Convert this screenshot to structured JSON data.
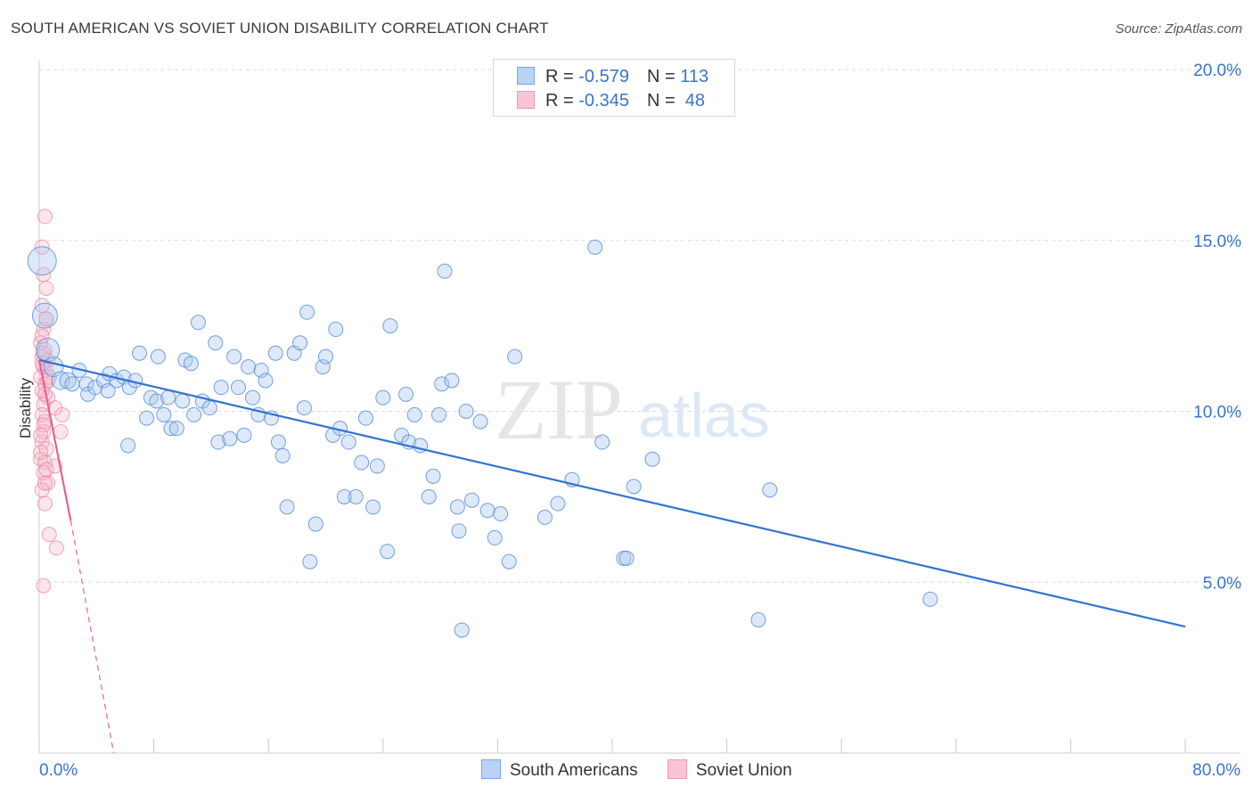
{
  "title": "SOUTH AMERICAN VS SOVIET UNION DISABILITY CORRELATION CHART",
  "source": "Source: ZipAtlas.com",
  "watermark": {
    "zip": "ZIP",
    "atlas": "atlas"
  },
  "legend": {
    "rows": [
      {
        "r_label": "R = ",
        "r_value": "-0.579",
        "n_label": "N = ",
        "n_value": "113"
      },
      {
        "r_label": "R = ",
        "r_value": "-0.345",
        "n_label": "N = ",
        "n_value": " 48"
      }
    ]
  },
  "colors": {
    "blue_fill": "#a9c8f0",
    "blue_stroke": "#5b8fd8",
    "blue_line": "#2f74d0",
    "pink_fill": "#f7b6c8",
    "pink_stroke": "#ec7fa0",
    "pink_line": "#e8628c",
    "grid": "#dcdcdc",
    "axis_label": "#3a74c9"
  },
  "chart_data": {
    "type": "scatter",
    "title": "SOUTH AMERICAN VS SOVIET UNION DISABILITY CORRELATION CHART",
    "ylabel": "Disability",
    "xlabel": "",
    "xlim": [
      0,
      80
    ],
    "ylim": [
      0,
      20
    ],
    "y_ticks": [
      "5.0%",
      "10.0%",
      "15.0%",
      "20.0%"
    ],
    "y_tick_values": [
      5,
      10,
      15,
      20
    ],
    "x_tick_labels": {
      "left": "0.0%",
      "right": "80.0%"
    },
    "grid": "horizontal dashed",
    "legend_position": "top-center",
    "series": [
      {
        "name": "South Americans",
        "color": "#a9c8f0",
        "trend": {
          "x": [
            0,
            80
          ],
          "y": [
            11.5,
            3.7
          ]
        },
        "points": [
          {
            "x": 0.2,
            "y": 14.4,
            "s": 16
          },
          {
            "x": 0.4,
            "y": 12.8,
            "s": 14
          },
          {
            "x": 0.6,
            "y": 11.8,
            "s": 13
          },
          {
            "x": 1.0,
            "y": 11.3,
            "s": 11
          },
          {
            "x": 1.5,
            "y": 10.9,
            "s": 10
          },
          {
            "x": 2.0,
            "y": 10.9,
            "s": 9
          },
          {
            "x": 2.3,
            "y": 10.8,
            "s": 8
          },
          {
            "x": 2.8,
            "y": 11.2,
            "s": 8
          },
          {
            "x": 3.3,
            "y": 10.8,
            "s": 8
          },
          {
            "x": 3.4,
            "y": 10.5,
            "s": 8
          },
          {
            "x": 3.9,
            "y": 10.7,
            "s": 8
          },
          {
            "x": 4.5,
            "y": 10.9,
            "s": 8
          },
          {
            "x": 4.8,
            "y": 10.6,
            "s": 8
          },
          {
            "x": 4.9,
            "y": 11.1,
            "s": 8
          },
          {
            "x": 5.4,
            "y": 10.9,
            "s": 8
          },
          {
            "x": 5.9,
            "y": 11.0,
            "s": 8
          },
          {
            "x": 6.3,
            "y": 10.7,
            "s": 8
          },
          {
            "x": 6.7,
            "y": 10.9,
            "s": 8
          },
          {
            "x": 6.2,
            "y": 9.0,
            "s": 8
          },
          {
            "x": 7.0,
            "y": 11.7,
            "s": 8
          },
          {
            "x": 7.5,
            "y": 9.8,
            "s": 8
          },
          {
            "x": 7.8,
            "y": 10.4,
            "s": 8
          },
          {
            "x": 8.2,
            "y": 10.3,
            "s": 8
          },
          {
            "x": 8.3,
            "y": 11.6,
            "s": 8
          },
          {
            "x": 8.7,
            "y": 9.9,
            "s": 8
          },
          {
            "x": 9.2,
            "y": 9.5,
            "s": 8
          },
          {
            "x": 9.6,
            "y": 9.5,
            "s": 8
          },
          {
            "x": 9.0,
            "y": 10.4,
            "s": 8
          },
          {
            "x": 10.0,
            "y": 10.3,
            "s": 8
          },
          {
            "x": 10.2,
            "y": 11.5,
            "s": 8
          },
          {
            "x": 10.6,
            "y": 11.4,
            "s": 8
          },
          {
            "x": 10.8,
            "y": 9.9,
            "s": 8
          },
          {
            "x": 11.1,
            "y": 12.6,
            "s": 8
          },
          {
            "x": 11.4,
            "y": 10.3,
            "s": 8
          },
          {
            "x": 11.9,
            "y": 10.1,
            "s": 8
          },
          {
            "x": 12.3,
            "y": 12.0,
            "s": 8
          },
          {
            "x": 12.5,
            "y": 9.1,
            "s": 8
          },
          {
            "x": 12.7,
            "y": 10.7,
            "s": 8
          },
          {
            "x": 13.3,
            "y": 9.2,
            "s": 8
          },
          {
            "x": 13.6,
            "y": 11.6,
            "s": 8
          },
          {
            "x": 13.9,
            "y": 10.7,
            "s": 8
          },
          {
            "x": 14.3,
            "y": 9.3,
            "s": 8
          },
          {
            "x": 14.6,
            "y": 11.3,
            "s": 8
          },
          {
            "x": 14.9,
            "y": 10.4,
            "s": 8
          },
          {
            "x": 15.3,
            "y": 9.9,
            "s": 8
          },
          {
            "x": 15.5,
            "y": 11.2,
            "s": 8
          },
          {
            "x": 15.8,
            "y": 10.9,
            "s": 8
          },
          {
            "x": 16.2,
            "y": 9.8,
            "s": 8
          },
          {
            "x": 16.5,
            "y": 11.7,
            "s": 8
          },
          {
            "x": 16.7,
            "y": 9.1,
            "s": 8
          },
          {
            "x": 17.0,
            "y": 8.7,
            "s": 8
          },
          {
            "x": 17.3,
            "y": 7.2,
            "s": 8
          },
          {
            "x": 17.8,
            "y": 11.7,
            "s": 8
          },
          {
            "x": 18.2,
            "y": 12.0,
            "s": 8
          },
          {
            "x": 18.5,
            "y": 10.1,
            "s": 8
          },
          {
            "x": 18.7,
            "y": 12.9,
            "s": 8
          },
          {
            "x": 18.9,
            "y": 5.6,
            "s": 8
          },
          {
            "x": 19.3,
            "y": 6.7,
            "s": 8
          },
          {
            "x": 19.8,
            "y": 11.3,
            "s": 8
          },
          {
            "x": 20.0,
            "y": 11.6,
            "s": 8
          },
          {
            "x": 20.5,
            "y": 9.3,
            "s": 8
          },
          {
            "x": 20.7,
            "y": 12.4,
            "s": 8
          },
          {
            "x": 21.0,
            "y": 9.5,
            "s": 8
          },
          {
            "x": 21.3,
            "y": 7.5,
            "s": 8
          },
          {
            "x": 21.6,
            "y": 9.1,
            "s": 8
          },
          {
            "x": 22.1,
            "y": 7.5,
            "s": 8
          },
          {
            "x": 22.5,
            "y": 8.5,
            "s": 8
          },
          {
            "x": 22.8,
            "y": 9.8,
            "s": 8
          },
          {
            "x": 23.3,
            "y": 7.2,
            "s": 8
          },
          {
            "x": 23.6,
            "y": 8.4,
            "s": 8
          },
          {
            "x": 24.0,
            "y": 10.4,
            "s": 8
          },
          {
            "x": 24.3,
            "y": 5.9,
            "s": 8
          },
          {
            "x": 24.5,
            "y": 12.5,
            "s": 8
          },
          {
            "x": 25.3,
            "y": 9.3,
            "s": 8
          },
          {
            "x": 25.6,
            "y": 10.5,
            "s": 8
          },
          {
            "x": 25.8,
            "y": 9.1,
            "s": 8
          },
          {
            "x": 26.2,
            "y": 9.9,
            "s": 8
          },
          {
            "x": 26.6,
            "y": 9.0,
            "s": 8
          },
          {
            "x": 27.2,
            "y": 7.5,
            "s": 8
          },
          {
            "x": 27.5,
            "y": 8.1,
            "s": 8
          },
          {
            "x": 27.9,
            "y": 9.9,
            "s": 8
          },
          {
            "x": 28.1,
            "y": 10.8,
            "s": 8
          },
          {
            "x": 28.3,
            "y": 14.1,
            "s": 8
          },
          {
            "x": 28.8,
            "y": 10.9,
            "s": 8
          },
          {
            "x": 29.2,
            "y": 7.2,
            "s": 8
          },
          {
            "x": 29.3,
            "y": 6.5,
            "s": 8
          },
          {
            "x": 29.8,
            "y": 10.0,
            "s": 8
          },
          {
            "x": 30.2,
            "y": 7.4,
            "s": 8
          },
          {
            "x": 30.8,
            "y": 9.7,
            "s": 8
          },
          {
            "x": 29.5,
            "y": 3.6,
            "s": 8
          },
          {
            "x": 31.3,
            "y": 7.1,
            "s": 8
          },
          {
            "x": 31.8,
            "y": 6.3,
            "s": 8
          },
          {
            "x": 32.2,
            "y": 7.0,
            "s": 8
          },
          {
            "x": 32.8,
            "y": 5.6,
            "s": 8
          },
          {
            "x": 33.2,
            "y": 11.6,
            "s": 8
          },
          {
            "x": 35.3,
            "y": 6.9,
            "s": 8
          },
          {
            "x": 36.2,
            "y": 7.3,
            "s": 8
          },
          {
            "x": 37.2,
            "y": 8.0,
            "s": 8
          },
          {
            "x": 38.8,
            "y": 14.8,
            "s": 8
          },
          {
            "x": 39.3,
            "y": 9.1,
            "s": 8
          },
          {
            "x": 40.8,
            "y": 5.7,
            "s": 8
          },
          {
            "x": 41.0,
            "y": 5.7,
            "s": 8
          },
          {
            "x": 41.5,
            "y": 7.8,
            "s": 8
          },
          {
            "x": 42.8,
            "y": 8.6,
            "s": 8
          },
          {
            "x": 50.2,
            "y": 3.9,
            "s": 8
          },
          {
            "x": 51.0,
            "y": 7.7,
            "s": 8
          },
          {
            "x": 62.2,
            "y": 4.5,
            "s": 8
          }
        ]
      },
      {
        "name": "Soviet Union",
        "color": "#f7b6c8",
        "trend": {
          "x": [
            0,
            2.2
          ],
          "y": [
            11.5,
            6.8
          ],
          "dashed_to": {
            "x": 5.2,
            "y": 0
          }
        },
        "points": [
          {
            "x": 0.4,
            "y": 15.7,
            "s": 8
          },
          {
            "x": 0.2,
            "y": 14.8,
            "s": 8
          },
          {
            "x": 0.3,
            "y": 14.0,
            "s": 8
          },
          {
            "x": 0.5,
            "y": 13.6,
            "s": 8
          },
          {
            "x": 0.2,
            "y": 13.1,
            "s": 8
          },
          {
            "x": 0.5,
            "y": 12.7,
            "s": 8
          },
          {
            "x": 0.3,
            "y": 12.4,
            "s": 8
          },
          {
            "x": 0.1,
            "y": 12.0,
            "s": 8
          },
          {
            "x": 0.4,
            "y": 11.8,
            "s": 8
          },
          {
            "x": 0.2,
            "y": 11.6,
            "s": 8
          },
          {
            "x": 0.6,
            "y": 11.5,
            "s": 8
          },
          {
            "x": 0.3,
            "y": 11.3,
            "s": 8
          },
          {
            "x": 0.5,
            "y": 11.2,
            "s": 8
          },
          {
            "x": 0.1,
            "y": 11.0,
            "s": 8
          },
          {
            "x": 0.4,
            "y": 10.8,
            "s": 8
          },
          {
            "x": 0.2,
            "y": 10.6,
            "s": 8
          },
          {
            "x": 0.6,
            "y": 10.4,
            "s": 8
          },
          {
            "x": 0.3,
            "y": 10.2,
            "s": 8
          },
          {
            "x": 1.1,
            "y": 10.1,
            "s": 8
          },
          {
            "x": 0.2,
            "y": 9.9,
            "s": 8
          },
          {
            "x": 1.6,
            "y": 9.9,
            "s": 8
          },
          {
            "x": 0.4,
            "y": 9.7,
            "s": 8
          },
          {
            "x": 0.3,
            "y": 9.4,
            "s": 8
          },
          {
            "x": 1.5,
            "y": 9.4,
            "s": 8
          },
          {
            "x": 0.2,
            "y": 9.1,
            "s": 8
          },
          {
            "x": 0.5,
            "y": 8.9,
            "s": 8
          },
          {
            "x": 0.1,
            "y": 8.6,
            "s": 8
          },
          {
            "x": 0.4,
            "y": 8.5,
            "s": 8
          },
          {
            "x": 1.1,
            "y": 8.4,
            "s": 8
          },
          {
            "x": 0.3,
            "y": 8.2,
            "s": 8
          },
          {
            "x": 0.6,
            "y": 7.9,
            "s": 8
          },
          {
            "x": 0.2,
            "y": 7.7,
            "s": 8
          },
          {
            "x": 0.4,
            "y": 7.3,
            "s": 8
          },
          {
            "x": 0.7,
            "y": 6.4,
            "s": 8
          },
          {
            "x": 1.2,
            "y": 6.0,
            "s": 8
          },
          {
            "x": 0.3,
            "y": 4.9,
            "s": 8
          },
          {
            "x": 0.5,
            "y": 12.7,
            "s": 8
          },
          {
            "x": 0.2,
            "y": 11.4,
            "s": 8
          },
          {
            "x": 0.6,
            "y": 10.9,
            "s": 8
          },
          {
            "x": 0.3,
            "y": 9.6,
            "s": 8
          },
          {
            "x": 0.1,
            "y": 8.8,
            "s": 8
          },
          {
            "x": 0.5,
            "y": 8.3,
            "s": 8
          },
          {
            "x": 0.3,
            "y": 11.7,
            "s": 8
          },
          {
            "x": 0.4,
            "y": 10.5,
            "s": 8
          },
          {
            "x": 0.2,
            "y": 12.2,
            "s": 8
          },
          {
            "x": 0.7,
            "y": 11.0,
            "s": 8
          },
          {
            "x": 0.1,
            "y": 9.3,
            "s": 8
          },
          {
            "x": 0.4,
            "y": 7.9,
            "s": 8
          }
        ]
      }
    ]
  }
}
